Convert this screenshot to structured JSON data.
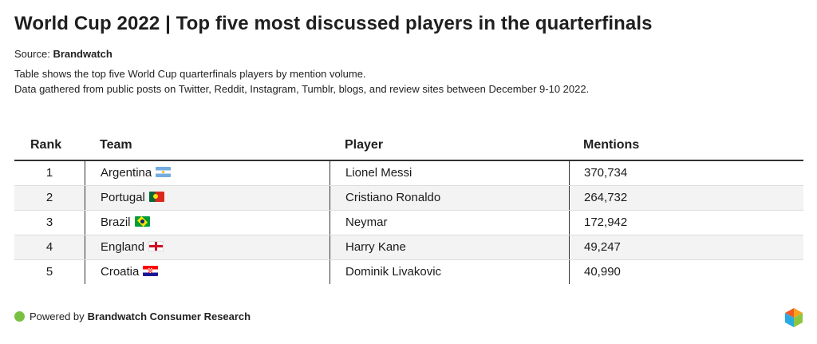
{
  "header": {
    "title": "World Cup 2022 | Top five most discussed players in the quarterfinals",
    "source_label": "Source:",
    "source_name": "Brandwatch",
    "description_line1": "Table shows the top five World Cup quarterfinals players by mention volume.",
    "description_line2": "Data gathered from public posts on Twitter, Reddit, Instagram, Tumblr, blogs, and review sites between December 9-10 2022."
  },
  "footer": {
    "powered_label": "Powered by",
    "powered_name": "Brandwatch Consumer Research",
    "logo_icon": "brandwatch-logo-icon"
  },
  "chart_data": {
    "type": "table",
    "columns": [
      "Rank",
      "Team",
      "Player",
      "Mentions"
    ],
    "rows": [
      {
        "rank": "1",
        "team": "Argentina",
        "flag": "argentina-flag-icon",
        "player": "Lionel Messi",
        "mentions": "370,734"
      },
      {
        "rank": "2",
        "team": "Portugal",
        "flag": "portugal-flag-icon",
        "player": "Cristiano Ronaldo",
        "mentions": "264,732"
      },
      {
        "rank": "3",
        "team": "Brazil",
        "flag": "brazil-flag-icon",
        "player": "Neymar",
        "mentions": "172,942"
      },
      {
        "rank": "4",
        "team": "England",
        "flag": "england-flag-icon",
        "player": "Harry Kane",
        "mentions": "49,247"
      },
      {
        "rank": "5",
        "team": "Croatia",
        "flag": "croatia-flag-icon",
        "player": "Dominik Livakovic",
        "mentions": "40,990"
      }
    ]
  }
}
